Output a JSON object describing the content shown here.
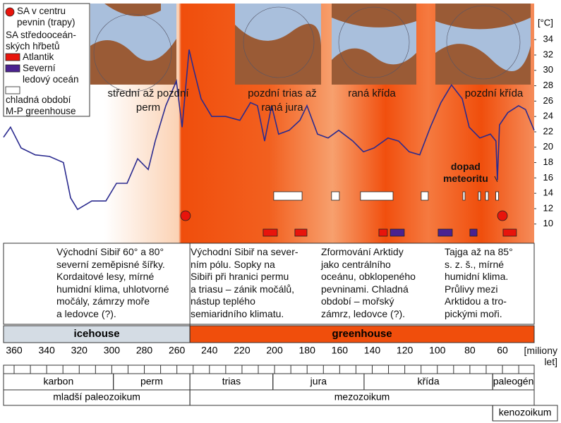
{
  "chart_data": {
    "type": "line",
    "y_unit_label": "[°C]",
    "x_unit_label": "[miliony\nlet]",
    "color": "#2b2b8f",
    "x": [
      366.5,
      362.2,
      355.7,
      347,
      338.3,
      329.7,
      325.3,
      321,
      312.3,
      303.6,
      297.1,
      290.6,
      284.1,
      277.6,
      273.3,
      266.8,
      260.3,
      256.8,
      252.5,
      249.5,
      245.1,
      238.6,
      230,
      221.3,
      214.8,
      210.5,
      206.1,
      201.8,
      197.5,
      191,
      184.4,
      180.1,
      173.6,
      167.1,
      160.6,
      151.9,
      145.4,
      138.9,
      130.3,
      123.8,
      117.3,
      110.8,
      104.3,
      97.8,
      91.3,
      84.7,
      80.4,
      73.9,
      67.4,
      64,
      63.1,
      61.8,
      56.7,
      50.1,
      45.8,
      40.5
    ],
    "values": [
      21.3,
      22.6,
      19.9,
      19,
      18.8,
      18,
      13.4,
      11.9,
      13,
      13,
      15.3,
      15.3,
      18.5,
      17.1,
      20.8,
      25.4,
      28.6,
      22.6,
      32.7,
      30,
      26.3,
      24,
      24,
      23.5,
      25.8,
      25.4,
      20.8,
      25.4,
      21.7,
      22.2,
      23.5,
      25.4,
      21.7,
      21.2,
      22.2,
      20.8,
      19.4,
      19.9,
      21.2,
      20.8,
      19.4,
      19,
      22.6,
      25.8,
      28.1,
      26.3,
      22.6,
      21.2,
      21.7,
      20.8,
      15.7,
      22.9,
      24.5,
      25.4,
      24.9,
      22.2
    ],
    "xlim": [
      366.5,
      40.5
    ],
    "ylim": [
      7.5,
      38.7
    ],
    "xticks": [
      360,
      340,
      320,
      300,
      280,
      260,
      240,
      220,
      200,
      180,
      160,
      140,
      120,
      100,
      80,
      60
    ],
    "xminorticks": [
      350,
      330,
      310,
      290,
      270,
      250,
      230,
      210,
      190,
      170,
      150,
      130,
      110,
      90,
      70,
      50
    ],
    "yticks": [
      10,
      12,
      14,
      16,
      18,
      20,
      22,
      24,
      26,
      28,
      30,
      32,
      34
    ],
    "legend_heading": "SA středooceán-\nských hřbetů",
    "trap_events": {
      "name": "SA v centru\npevnin (trapy)",
      "color": "#e8140c",
      "x": [
        254.7,
        60
      ]
    },
    "event_series": [
      {
        "name": "Atlantik",
        "color": "#e8140c",
        "intervals": [
          [
            207,
            198.3
          ],
          [
            187.5,
            180.1
          ],
          [
            135.9,
            130.7
          ],
          [
            59.6,
            51.4
          ]
        ]
      },
      {
        "name": "Severní\nledový oceán",
        "color": "#4b2290",
        "intervals": [
          [
            128.9,
            120.3
          ],
          [
            99.5,
            90.8
          ],
          [
            80,
            75.6
          ]
        ]
      },
      {
        "name": "chladná období\nM-P greenhouse",
        "color": "#ffffff",
        "intervals": [
          [
            200.5,
            183.1
          ],
          [
            165,
            160.2
          ],
          [
            147.2,
            127.2
          ],
          [
            109.9,
            105.6
          ],
          [
            84.3,
            83
          ],
          [
            74.8,
            73.5
          ],
          [
            70.4,
            68.7
          ],
          [
            64.1,
            62.4
          ]
        ]
      }
    ],
    "annotations": [
      "střední až pozdní\nperm",
      "pozdní trias až\nraná jura",
      "raná křída",
      "pozdní křída"
    ],
    "meteor": {
      "text": "dopad\nmeteoritu",
      "x": 63.1
    },
    "descriptions": [
      "Východní Sibiř 60° a 80°\nseverní zeměpisné šířky.\nKordaitové lesy, mírné\nhumidní klima, uhlotvorné\nmočály, zámrzy moře\na ledovce (?).",
      "Východní Sibiř na sever-\nním pólu. Sopky na\nSibiři při hranici permu\na triasu – zánik močálů,\nnástup teplého\nsemiaridního klimatu.",
      "Zformování Arktidy\njako centrálního\noceánu, obklopeného\npevninami. Chladná\nobdobí – mořský\nzámrz, ledovce (?).",
      "Tajga až na 85°\ns. z. š., mírné\nhumidní klima.\nPrůlivy mezi\nArktidou a tro-\npickými moři."
    ],
    "climate": [
      {
        "name": "icehouse",
        "color": "#d4dce4"
      },
      {
        "name": "greenhouse",
        "color": "#f04e0c"
      }
    ],
    "climate_boundary": 252,
    "periods": [
      "karbon",
      "perm",
      "trias",
      "jura",
      "křída",
      "paleogén"
    ],
    "period_boundaries": [
      299,
      252,
      201,
      145,
      66
    ],
    "eras": [
      "mladší paleozoikum",
      "mezozoikum",
      "kenozoikum"
    ],
    "era_boundaries": [
      252,
      66
    ]
  }
}
